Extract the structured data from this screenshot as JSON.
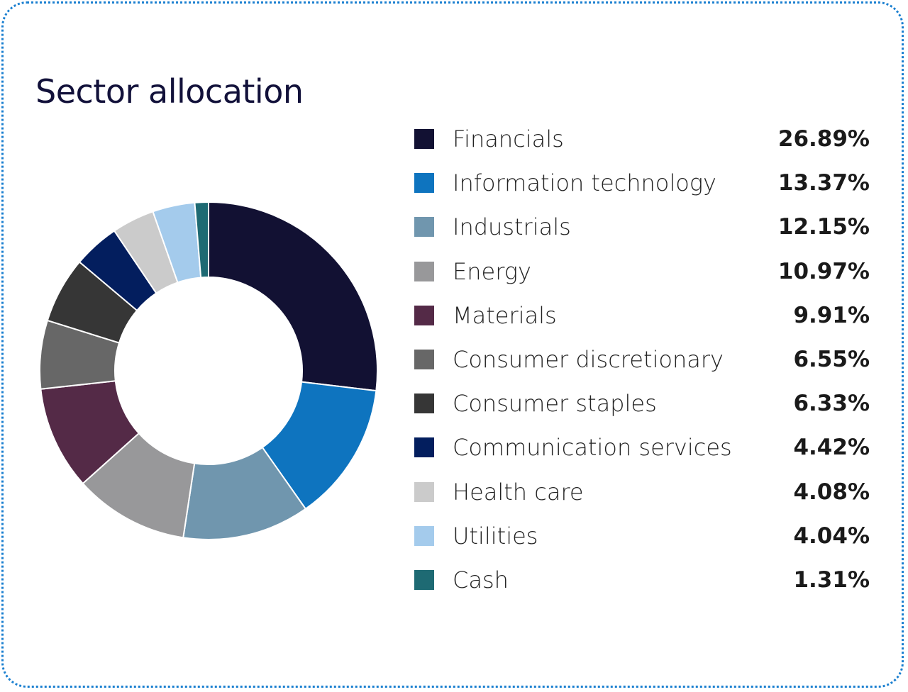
{
  "chart_data": {
    "type": "pie",
    "subtype": "donut",
    "title": "Sector allocation",
    "legend_position": "right",
    "categories": [
      "Financials",
      "Information technology",
      "Industrials",
      "Energy",
      "Materials",
      "Consumer discretionary",
      "Consumer staples",
      "Communication services",
      "Health care",
      "Utilities",
      "Cash"
    ],
    "values": [
      26.89,
      13.37,
      12.15,
      10.97,
      9.91,
      6.55,
      6.33,
      4.42,
      4.08,
      4.04,
      1.31
    ],
    "labels": [
      "26.89%",
      "13.37%",
      "12.15%",
      "10.97%",
      "9.91%",
      "6.55%",
      "6.33%",
      "4.42%",
      "4.08%",
      "4.04%",
      "1.31%"
    ],
    "colors": [
      "#121133",
      "#0e74bf",
      "#7096ae",
      "#98989a",
      "#542a47",
      "#676767",
      "#363636",
      "#031e5e",
      "#cbcbcb",
      "#a4cbec",
      "#1e6a73"
    ]
  },
  "border_color": "#1a7fd0"
}
